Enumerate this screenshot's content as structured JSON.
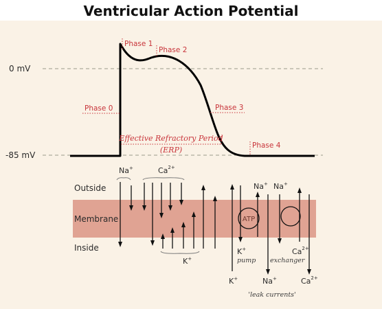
{
  "title": "Ventricular Action Potential",
  "axis": {
    "zero_label": "0 mV",
    "rest_label": "-85 mV"
  },
  "phases": [
    "Phase 0",
    "Phase 1",
    "Phase 2",
    "Phase 3",
    "Phase 4"
  ],
  "erp": {
    "label": "Effective Refractory Period",
    "abbr": "(ERP)"
  },
  "regions": {
    "outside": "Outside",
    "membrane": "Membrane",
    "inside": "Inside"
  },
  "ions": {
    "na": "Na",
    "na_charge": "+",
    "ca": "Ca",
    "ca_charge": "2+",
    "k": "K",
    "k_charge": "+"
  },
  "pump": {
    "atp": "ATP",
    "label": "pump"
  },
  "exchanger": {
    "label": "exchanger"
  },
  "leak_label": "'leak currents'",
  "colors": {
    "background": "#faf2e6",
    "membrane": "#e0a393",
    "accent_red": "#c8343a",
    "trace": "#000000"
  }
}
